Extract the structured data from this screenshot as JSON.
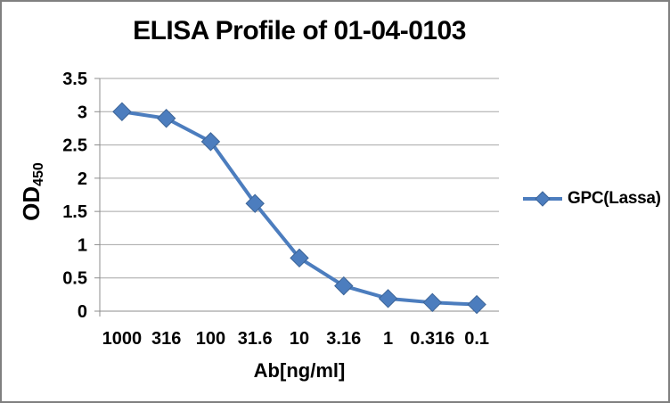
{
  "frame": {
    "background": "#FFFFFF",
    "border_color": "#808080"
  },
  "chart_data": {
    "type": "line",
    "title": "ELISA Profile of 01-04-0103",
    "xlabel": "Ab[ng/ml]",
    "ylabel": {
      "main": "OD",
      "sub": "450"
    },
    "categories": [
      "1000",
      "316",
      "100",
      "31.6",
      "10",
      "3.16",
      "1",
      "0.316",
      "0.1"
    ],
    "series": [
      {
        "name": "GPC(Lassa)",
        "values": [
          3.0,
          2.9,
          2.55,
          1.62,
          0.8,
          0.38,
          0.19,
          0.13,
          0.1
        ],
        "color": "#4C7DBE",
        "marker": "diamond",
        "marker_edge": "#3C6497"
      }
    ],
    "ylim": [
      0,
      3.5
    ],
    "ytick_step": 0.5,
    "yticks": [
      "3.5",
      "3",
      "2.5",
      "2",
      "1.5",
      "1",
      "0.5",
      "0"
    ],
    "grid": "horizontal",
    "legend_position": "right",
    "colors": {
      "gridline": "#A6A6A6",
      "axis": "#8C8C8C",
      "text": "#000000"
    }
  }
}
